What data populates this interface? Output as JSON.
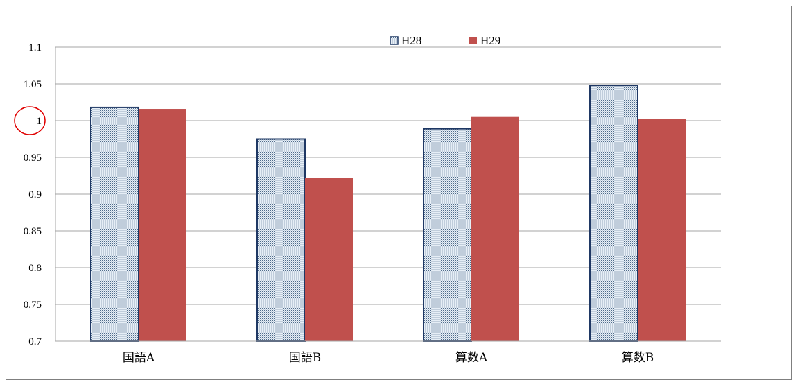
{
  "chart_data": {
    "type": "bar",
    "categories": [
      "国語A",
      "国語B",
      "算数A",
      "算数B"
    ],
    "series": [
      {
        "name": "H28",
        "values": [
          1.018,
          0.975,
          0.989,
          1.048
        ],
        "color": "#dce6f1",
        "stroke": "#1f3864",
        "pattern": "dotted-hatch"
      },
      {
        "name": "H29",
        "values": [
          1.016,
          0.922,
          1.005,
          1.002
        ],
        "color": "#c0504d",
        "stroke": "#c0504d",
        "pattern": "solid"
      }
    ],
    "ylim": [
      0.7,
      1.1
    ],
    "yticks": [
      "0.7",
      "0.75",
      "0.8",
      "0.85",
      "0.9",
      "0.95",
      "1",
      "1.05",
      "1.1"
    ],
    "grid": true,
    "legend_position": "top-center",
    "annotation": {
      "type": "circle",
      "target_tick": "1",
      "color": "#e00000"
    }
  }
}
